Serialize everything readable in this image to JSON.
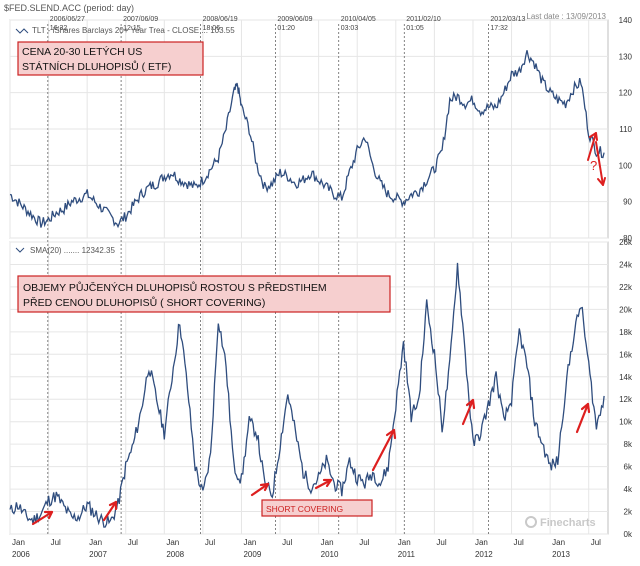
{
  "header": {
    "symbol": "$FED.SLEND.ACC (period: day)",
    "last_date": "Last date : 13/09/2013"
  },
  "watermark": "Finecharts",
  "colors": {
    "line": "#2f4d7e",
    "annotation_bg": "#f6cfcf",
    "annotation_border": "#cc2222",
    "arrow": "#dd1f1f",
    "grid": "#e6e6e6",
    "axis_text": "#333333"
  },
  "chart_data": [
    {
      "type": "line",
      "title": "TLT - iShares Barclays 20+ Year Trea - CLOSE ... 103.55",
      "annotation": [
        "CENA 20-30 LETÝCH US",
        "STÁTNÍCH DLUHOPISŮ ( ETF)"
      ],
      "ylabel": "",
      "ylim": [
        80,
        140
      ],
      "yticks": [
        80,
        90,
        100,
        110,
        120,
        130,
        140
      ],
      "ytick_labels": [
        "80",
        "90",
        "100",
        "110",
        "120",
        "130",
        "140"
      ],
      "series": [
        {
          "name": "TLT",
          "x": [
            2006.0,
            2006.1,
            2006.2,
            2006.3,
            2006.4,
            2006.5,
            2006.6,
            2006.7,
            2006.8,
            2006.9,
            2007.0,
            2007.1,
            2007.2,
            2007.3,
            2007.4,
            2007.5,
            2007.6,
            2007.7,
            2007.8,
            2007.9,
            2008.0,
            2008.1,
            2008.2,
            2008.3,
            2008.4,
            2008.5,
            2008.6,
            2008.7,
            2008.8,
            2008.9,
            2008.95,
            2009.0,
            2009.1,
            2009.2,
            2009.3,
            2009.4,
            2009.5,
            2009.6,
            2009.7,
            2009.8,
            2009.9,
            2010.0,
            2010.1,
            2010.2,
            2010.3,
            2010.4,
            2010.5,
            2010.6,
            2010.7,
            2010.8,
            2010.9,
            2011.0,
            2011.1,
            2011.2,
            2011.3,
            2011.4,
            2011.5,
            2011.6,
            2011.7,
            2011.8,
            2011.9,
            2012.0,
            2012.1,
            2012.2,
            2012.3,
            2012.4,
            2012.5,
            2012.6,
            2012.7,
            2012.8,
            2012.9,
            2013.0,
            2013.1,
            2013.2,
            2013.3,
            2013.4,
            2013.5,
            2013.6,
            2013.7
          ],
          "values": [
            92,
            90,
            88,
            86,
            84,
            85,
            87,
            88,
            90,
            91,
            92,
            90,
            88,
            86,
            84,
            86,
            89,
            92,
            94,
            95,
            97,
            98,
            96,
            95,
            94,
            96,
            99,
            102,
            110,
            120,
            122,
            116,
            110,
            100,
            94,
            95,
            98,
            97,
            95,
            96,
            98,
            96,
            94,
            92,
            91,
            98,
            104,
            108,
            100,
            95,
            92,
            91,
            90,
            92,
            93,
            96,
            99,
            104,
            118,
            119,
            117,
            118,
            115,
            116,
            116,
            120,
            125,
            126,
            131,
            128,
            123,
            120,
            118,
            117,
            121,
            123,
            109,
            104,
            103.5
          ]
        }
      ],
      "x_markers": [
        "2006/06/27 16:32",
        "2007/06/09 12:15",
        "2008/06/19 18:06",
        "2009/06/09 01:20",
        "2010/04/05 03:03",
        "2011/02/10 01:05",
        "2012/03/13 17:32"
      ],
      "marker_x": [
        2006.49,
        2007.44,
        2008.47,
        2009.44,
        2010.26,
        2011.11,
        2012.2
      ],
      "symbol_note": "?"
    },
    {
      "type": "line",
      "title": "SMA(20) ....... 12342.35",
      "annotation": [
        "OBJEMY PŮJČENÝCH DLUHOPISŮ ROSTOU S PŘEDSTIHEM",
        "PŘED CENOU DLUHOPISŮ ( SHORT COVERING)"
      ],
      "label_box": "SHORT COVERING",
      "ylim": [
        0,
        26000
      ],
      "yticks": [
        0,
        2000,
        4000,
        6000,
        8000,
        10000,
        12000,
        14000,
        16000,
        18000,
        20000,
        22000,
        24000,
        26000
      ],
      "ytick_labels": [
        "0k",
        "2k",
        "4k",
        "6k",
        "8k",
        "10k",
        "12k",
        "14k",
        "16k",
        "18k",
        "20k",
        "22k",
        "24k",
        "26k"
      ],
      "series": [
        {
          "name": "SMA(20)",
          "x": [
            2006.0,
            2006.1,
            2006.2,
            2006.3,
            2006.4,
            2006.5,
            2006.6,
            2006.7,
            2006.8,
            2006.9,
            2007.0,
            2007.1,
            2007.2,
            2007.3,
            2007.4,
            2007.5,
            2007.6,
            2007.7,
            2007.8,
            2007.9,
            2008.0,
            2008.1,
            2008.2,
            2008.3,
            2008.4,
            2008.5,
            2008.6,
            2008.7,
            2008.8,
            2008.9,
            2009.0,
            2009.1,
            2009.2,
            2009.3,
            2009.4,
            2009.5,
            2009.6,
            2009.7,
            2009.8,
            2009.9,
            2010.0,
            2010.1,
            2010.2,
            2010.3,
            2010.4,
            2010.5,
            2010.6,
            2010.7,
            2010.8,
            2010.9,
            2011.0,
            2011.1,
            2011.2,
            2011.3,
            2011.4,
            2011.5,
            2011.6,
            2011.7,
            2011.8,
            2011.9,
            2012.0,
            2012.1,
            2012.2,
            2012.3,
            2012.4,
            2012.5,
            2012.6,
            2012.7,
            2012.8,
            2012.9,
            2013.0,
            2013.1,
            2013.2,
            2013.3,
            2013.4,
            2013.5,
            2013.6,
            2013.7
          ],
          "values": [
            2000,
            2600,
            1600,
            1200,
            1800,
            3000,
            3400,
            2400,
            1400,
            1600,
            2600,
            1800,
            1200,
            1000,
            2600,
            6000,
            8000,
            11000,
            15000,
            12000,
            9000,
            14000,
            19000,
            13000,
            6000,
            3500,
            7000,
            19200,
            15000,
            6000,
            4800,
            10000,
            9000,
            4500,
            3500,
            8000,
            12500,
            9000,
            5500,
            4200,
            5000,
            6500,
            4500,
            3900,
            6500,
            5000,
            4500,
            5500,
            4500,
            6000,
            11500,
            17000,
            10500,
            12000,
            20500,
            16000,
            9500,
            15000,
            24000,
            16000,
            8000,
            9000,
            11500,
            14000,
            10000,
            12000,
            18000,
            15000,
            10000,
            8000,
            6000,
            6500,
            13000,
            17500,
            20500,
            15000,
            9500,
            12300
          ]
        }
      ],
      "arrows": 7
    }
  ],
  "x_axis": {
    "month_labels": [
      "Jan",
      "Jul",
      "Jan",
      "Jul",
      "Jan",
      "Jul",
      "Jan",
      "Jul",
      "Jan",
      "Jul",
      "Jan",
      "Jul",
      "Jan",
      "Jul",
      "Jan",
      "Jul"
    ],
    "month_positions": [
      2006.0,
      2006.5,
      2007.0,
      2007.5,
      2008.0,
      2008.5,
      2009.0,
      2009.5,
      2010.0,
      2010.5,
      2011.0,
      2011.5,
      2012.0,
      2012.5,
      2013.0,
      2013.5
    ],
    "year_labels": [
      "2006",
      "2007",
      "2008",
      "2009",
      "2010",
      "2011",
      "2012",
      "2013"
    ],
    "year_positions": [
      2006.0,
      2007.0,
      2008.0,
      2009.0,
      2010.0,
      2011.0,
      2012.0,
      2013.0
    ],
    "range": [
      2006.0,
      2013.75
    ]
  }
}
